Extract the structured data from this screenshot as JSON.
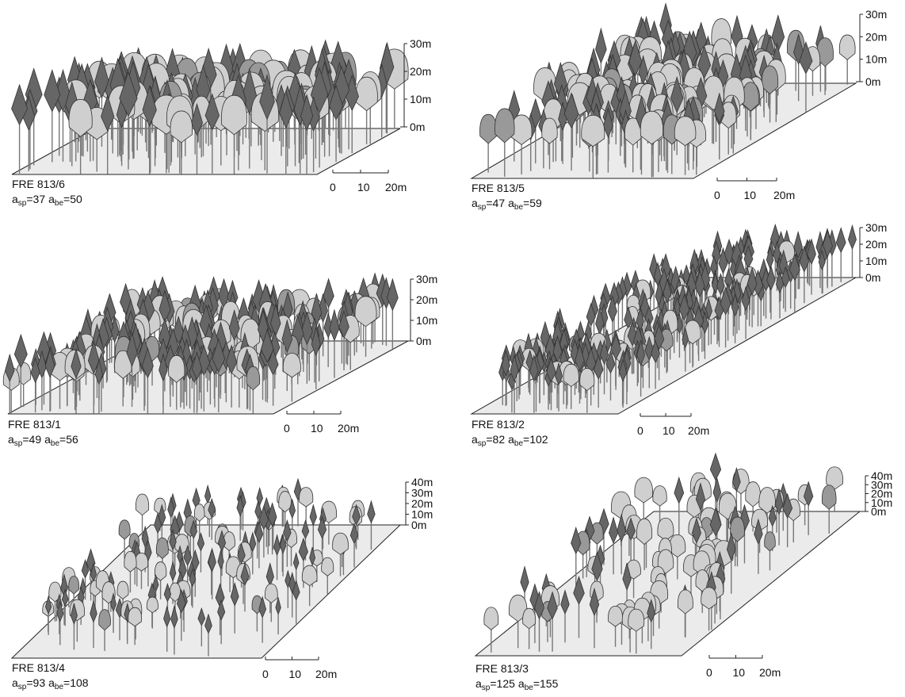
{
  "panels": [
    {
      "plot": "FRE 813/6",
      "ages": [
        {
          "symbol": "a",
          "sub": "sp",
          "value": "=37"
        },
        {
          "symbol": "a",
          "sub": "be",
          "value": "=50"
        }
      ],
      "height_ticks": [
        "30m",
        "20m",
        "10m",
        "0m"
      ],
      "scale_ticks": [
        "0",
        "10",
        "20m"
      ]
    },
    {
      "plot": "FRE 813/5",
      "ages": [
        {
          "symbol": "a",
          "sub": "sp",
          "value": "=47"
        },
        {
          "symbol": "a",
          "sub": "be",
          "value": "=59"
        }
      ],
      "height_ticks": [
        "30m",
        "20m",
        "10m",
        "0m"
      ],
      "scale_ticks": [
        "0",
        "10",
        "20m"
      ]
    },
    {
      "plot": "FRE 813/1",
      "ages": [
        {
          "symbol": "a",
          "sub": "sp",
          "value": "=49"
        },
        {
          "symbol": "a",
          "sub": "be",
          "value": "=56"
        }
      ],
      "height_ticks": [
        "30m",
        "20m",
        "10m",
        "0m"
      ],
      "scale_ticks": [
        "0",
        "10",
        "20m"
      ]
    },
    {
      "plot": "FRE 813/2",
      "ages": [
        {
          "symbol": "a",
          "sub": "sp",
          "value": "=82"
        },
        {
          "symbol": "a",
          "sub": "be",
          "value": "=102"
        }
      ],
      "height_ticks": [
        "30m",
        "20m",
        "10m",
        "0m"
      ],
      "scale_ticks": [
        "0",
        "10",
        "20m"
      ]
    },
    {
      "plot": "FRE 813/4",
      "ages": [
        {
          "symbol": "a",
          "sub": "sp",
          "value": "=93"
        },
        {
          "symbol": "a",
          "sub": "be",
          "value": "=108"
        }
      ],
      "height_ticks": [
        "40m",
        "30m",
        "20m",
        "10m",
        "0m"
      ],
      "scale_ticks": [
        "0",
        "10",
        "20m"
      ]
    },
    {
      "plot": "FRE 813/3",
      "ages": [
        {
          "symbol": "a",
          "sub": "sp",
          "value": "=125"
        },
        {
          "symbol": "a",
          "sub": "be",
          "value": "=155"
        }
      ],
      "height_ticks": [
        "40m",
        "30m",
        "20m",
        "10m",
        "0m"
      ],
      "scale_ticks": [
        "0",
        "10",
        "20m"
      ]
    }
  ]
}
